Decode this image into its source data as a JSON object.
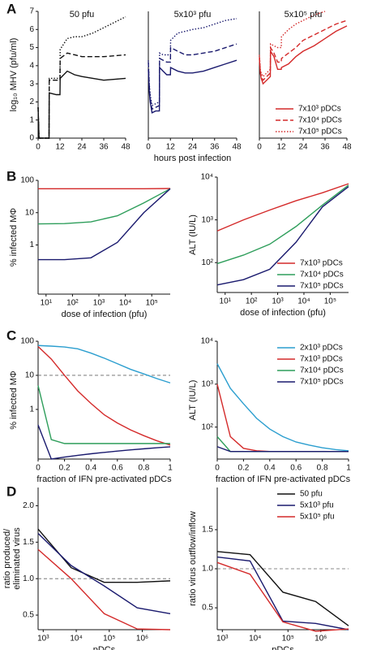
{
  "panel_labels": [
    "A",
    "B",
    "C",
    "D"
  ],
  "chart_data": [
    {
      "type": "line",
      "title": "50 pfu",
      "ylabel": [
        "log₁₀ MHV (pfu/ml)"
      ],
      "x": [
        0,
        0.5,
        1,
        2,
        4,
        6,
        6.1,
        8,
        10,
        12,
        12.1,
        16,
        20,
        24,
        30,
        36,
        42,
        48
      ],
      "xlim": [
        0,
        48
      ],
      "xticks": [
        0,
        12,
        24,
        36,
        48
      ],
      "ylim": [
        0,
        7
      ],
      "yticks": [
        0,
        1,
        2,
        3,
        4,
        5,
        6,
        7
      ],
      "series": [
        {
          "color": "#111111",
          "dash": "solid",
          "values": [
            1.7,
            0,
            0,
            0,
            0,
            0,
            2.5,
            2.45,
            2.4,
            2.4,
            3.3,
            3.7,
            3.5,
            3.4,
            3.3,
            3.2,
            3.25,
            3.3
          ]
        },
        {
          "color": "#111111",
          "dash": "dashed",
          "values": [
            1.7,
            0,
            0,
            0,
            0,
            0,
            3.2,
            3.2,
            3.2,
            3.2,
            4.4,
            4.7,
            4.6,
            4.5,
            4.5,
            4.5,
            4.55,
            4.6
          ]
        },
        {
          "color": "#111111",
          "dash": "dotted",
          "values": [
            1.7,
            0,
            0,
            0,
            0,
            0,
            3.3,
            3.3,
            3.3,
            3.3,
            4.9,
            5.5,
            5.6,
            5.6,
            5.8,
            6.1,
            6.4,
            6.7
          ]
        }
      ]
    },
    {
      "type": "line",
      "title": "5x10³ pfu",
      "xlabel": "hours post infection",
      "x": [
        0,
        0.5,
        1,
        2,
        4,
        6,
        6.1,
        8,
        10,
        12,
        12.1,
        16,
        20,
        24,
        30,
        36,
        42,
        48
      ],
      "xlim": [
        0,
        48
      ],
      "xticks": [
        0,
        12,
        24,
        36,
        48
      ],
      "ylim": [
        0,
        7
      ],
      "series": [
        {
          "color": "#1a1a6e",
          "dash": "solid",
          "values": [
            3.8,
            2.6,
            2.0,
            1.4,
            1.5,
            1.5,
            3.9,
            3.7,
            3.5,
            3.5,
            3.9,
            3.7,
            3.6,
            3.6,
            3.7,
            3.9,
            4.1,
            4.3
          ]
        },
        {
          "color": "#1a1a6e",
          "dash": "dashed",
          "values": [
            4.2,
            2.9,
            2.2,
            1.6,
            1.7,
            1.8,
            4.4,
            4.3,
            4.2,
            4.2,
            5.0,
            4.8,
            4.6,
            4.6,
            4.7,
            4.8,
            5.0,
            5.2
          ]
        },
        {
          "color": "#1a1a6e",
          "dash": "dotted",
          "values": [
            4.3,
            3.0,
            2.4,
            1.8,
            1.9,
            2.0,
            4.7,
            4.6,
            4.6,
            4.6,
            5.4,
            5.8,
            5.9,
            6.0,
            6.1,
            6.3,
            6.5,
            6.6
          ]
        }
      ]
    },
    {
      "type": "line",
      "title": "5x10⁵ pfu",
      "legend": "lower right",
      "x": [
        0,
        0.5,
        1,
        2,
        4,
        6,
        6.1,
        8,
        10,
        12,
        12.1,
        16,
        20,
        24,
        30,
        36,
        42,
        48
      ],
      "xlim": [
        0,
        48
      ],
      "xticks": [
        0,
        12,
        24,
        36,
        48
      ],
      "ylim": [
        0,
        7
      ],
      "series": [
        {
          "name": "7x10³ pDCs",
          "color": "#d42a2a",
          "dash": "solid",
          "values": [
            4.4,
            3.6,
            3.3,
            3.0,
            3.2,
            3.4,
            4.8,
            4.5,
            3.8,
            3.8,
            3.9,
            4.1,
            4.5,
            4.8,
            5.1,
            5.5,
            5.9,
            6.2
          ]
        },
        {
          "name": "7x10⁴ pDCs",
          "color": "#d42a2a",
          "dash": "dashed",
          "values": [
            4.5,
            3.7,
            3.4,
            3.2,
            3.4,
            3.6,
            5.0,
            4.7,
            4.2,
            4.2,
            4.4,
            4.7,
            5.0,
            5.4,
            5.7,
            6.0,
            6.3,
            6.5
          ]
        },
        {
          "name": "7x10⁵ pDCs",
          "color": "#d42a2a",
          "dash": "dotted",
          "values": [
            4.6,
            3.8,
            3.6,
            3.4,
            3.6,
            3.8,
            5.2,
            5.1,
            5.0,
            5.0,
            5.6,
            6.0,
            6.3,
            6.5,
            6.8,
            7.0,
            null,
            null
          ]
        }
      ]
    },
    {
      "type": "line",
      "ylabel": [
        "% infected MΦ"
      ],
      "xlabel": "dose of infection (pfu)",
      "xscale": "log",
      "yscale": "log",
      "x": [
        5,
        50,
        500,
        5000,
        50000,
        500000
      ],
      "xlim": [
        5,
        500000
      ],
      "xticks": [
        {
          "value": 10,
          "label": "10¹"
        },
        {
          "value": 100,
          "label": "10²"
        },
        {
          "value": 1000,
          "label": "10³"
        },
        {
          "value": 10000,
          "label": "10⁴"
        },
        {
          "value": 100000,
          "label": "10⁵"
        }
      ],
      "ylim": [
        0.03,
        100
      ],
      "yticks": [
        1,
        10,
        100
      ],
      "series": [
        {
          "color": "#d42a2a",
          "dash": "solid",
          "values": [
            55,
            55,
            55,
            55,
            55,
            56
          ]
        },
        {
          "color": "#2e9e5b",
          "dash": "solid",
          "values": [
            4.5,
            4.6,
            5.2,
            8,
            20,
            55
          ]
        },
        {
          "color": "#1a1a6e",
          "dash": "solid",
          "values": [
            0.35,
            0.35,
            0.4,
            1.2,
            10,
            55
          ]
        }
      ]
    },
    {
      "type": "line",
      "ylabel": [
        "ALT (IU/L)"
      ],
      "xlabel": "dose of infection (pfu)",
      "legend": "lower right",
      "xscale": "log",
      "yscale": "log",
      "x": [
        5,
        50,
        500,
        5000,
        50000,
        500000
      ],
      "xlim": [
        5,
        500000
      ],
      "xticks": [
        {
          "value": 10,
          "label": "10¹"
        },
        {
          "value": 100,
          "label": "10²"
        },
        {
          "value": 1000,
          "label": "10³"
        },
        {
          "value": 10000,
          "label": "10⁴"
        },
        {
          "value": 100000,
          "label": "10⁵"
        }
      ],
      "ylim": [
        20,
        10000
      ],
      "yticks": [
        {
          "value": 100,
          "label": "10²"
        },
        {
          "value": 1000,
          "label": "10³"
        },
        {
          "value": 10000,
          "label": "10⁴"
        }
      ],
      "series": [
        {
          "name": "7x10³ pDCs",
          "color": "#d42a2a",
          "dash": "solid",
          "values": [
            550,
            1000,
            1700,
            2800,
            4300,
            7000
          ]
        },
        {
          "name": "7x10⁴ pDCs",
          "color": "#2e9e5b",
          "dash": "solid",
          "values": [
            95,
            150,
            270,
            700,
            2200,
            6500
          ]
        },
        {
          "name": "7x10⁵ pDCs",
          "color": "#1a1a6e",
          "dash": "solid",
          "values": [
            30,
            40,
            70,
            300,
            2000,
            6000
          ]
        }
      ]
    },
    {
      "type": "line",
      "ylabel": [
        "% infected MΦ"
      ],
      "xlabel": "fraction of IFN pre-activated pDCs",
      "yscale": "log",
      "hline": 10,
      "x": [
        0,
        0.1,
        0.2,
        0.3,
        0.4,
        0.5,
        0.6,
        0.7,
        0.8,
        0.9,
        1
      ],
      "xlim": [
        0,
        1
      ],
      "xticks": [
        0,
        0.2,
        0.4,
        0.6,
        0.8,
        1
      ],
      "ylim": [
        0.035,
        100
      ],
      "yticks": [
        1,
        10,
        100
      ],
      "series": [
        {
          "color": "#2b9ecf",
          "dash": "solid",
          "values": [
            75,
            72,
            68,
            60,
            45,
            32,
            22,
            15,
            11,
            8,
            6
          ]
        },
        {
          "color": "#d42a2a",
          "dash": "solid",
          "values": [
            70,
            30,
            10,
            3.5,
            1.5,
            0.7,
            0.4,
            0.25,
            0.17,
            0.12,
            0.09
          ]
        },
        {
          "color": "#2e9e5b",
          "dash": "solid",
          "values": [
            5,
            0.13,
            0.1,
            0.1,
            0.1,
            0.1,
            0.1,
            0.1,
            0.1,
            0.1,
            0.1
          ]
        },
        {
          "color": "#1a1a6e",
          "dash": "solid",
          "values": [
            0.35,
            0.035,
            0.04,
            0.045,
            0.05,
            0.055,
            0.06,
            0.065,
            0.07,
            0.075,
            0.08
          ]
        }
      ]
    },
    {
      "type": "line",
      "ylabel": [
        "ALT (IU/L)"
      ],
      "xlabel": "fraction of IFN pre-activated pDCs",
      "legend": "upper right",
      "yscale": "log",
      "x": [
        0,
        0.1,
        0.2,
        0.3,
        0.4,
        0.5,
        0.6,
        0.7,
        0.8,
        0.9,
        1
      ],
      "xlim": [
        0,
        1
      ],
      "xticks": [
        0,
        0.2,
        0.4,
        0.6,
        0.8,
        1
      ],
      "ylim": [
        18,
        10000
      ],
      "yticks": [
        {
          "value": 100,
          "label": "10²"
        },
        {
          "value": 1000,
          "label": "10³"
        },
        {
          "value": 10000,
          "label": "10⁴"
        }
      ],
      "series": [
        {
          "name": "2x10³ pDCs",
          "color": "#2b9ecf",
          "dash": "solid",
          "values": [
            3000,
            800,
            350,
            160,
            90,
            60,
            45,
            38,
            33,
            30,
            28
          ]
        },
        {
          "name": "7x10³ pDCs",
          "color": "#d42a2a",
          "dash": "solid",
          "values": [
            1000,
            60,
            32,
            28,
            27,
            27,
            27,
            27,
            27,
            27,
            27
          ]
        },
        {
          "name": "7x10⁴ pDCs",
          "color": "#2e9e5b",
          "dash": "solid",
          "values": [
            60,
            27,
            27,
            27,
            27,
            27,
            27,
            27,
            27,
            27,
            27
          ]
        },
        {
          "name": "7x10⁵ pDCs",
          "color": "#1a1a6e",
          "dash": "solid",
          "values": [
            35,
            27,
            27,
            27,
            27,
            27,
            27,
            27,
            27,
            27,
            27
          ]
        }
      ]
    },
    {
      "type": "line",
      "ylabel": [
        "ratio produced/",
        "eliminated virus"
      ],
      "xlabel": "pDCs",
      "xscale": "log",
      "hline": 1,
      "x": [
        700,
        7000,
        70000,
        700000,
        7000000
      ],
      "xlim": [
        700,
        7000000
      ],
      "xticks": [
        {
          "value": 1000,
          "label": "10³"
        },
        {
          "value": 10000,
          "label": "10⁴"
        },
        {
          "value": 100000,
          "label": "10⁵"
        },
        {
          "value": 1000000,
          "label": "10⁶"
        }
      ],
      "ylim": [
        0.3,
        2.25
      ],
      "yticks": [
        0.5,
        {
          "value": 1,
          "label": "1.0"
        },
        1.5,
        {
          "value": 2,
          "label": "2.0"
        }
      ],
      "series": [
        {
          "color": "#111111",
          "dash": "solid",
          "values": [
            1.68,
            1.15,
            0.95,
            0.95,
            0.97
          ]
        },
        {
          "color": "#1a1a6e",
          "dash": "solid",
          "values": [
            1.62,
            1.18,
            0.9,
            0.6,
            0.52
          ]
        },
        {
          "color": "#d42a2a",
          "dash": "solid",
          "values": [
            1.4,
            1.0,
            0.52,
            0.31,
            0.3
          ]
        }
      ]
    },
    {
      "type": "line",
      "ylabel": [
        "ratio virus outflow/inflow"
      ],
      "xlabel": "pDCs",
      "legend": "upper right",
      "xscale": "log",
      "hline": 1,
      "x": [
        700,
        7000,
        70000,
        700000,
        7000000
      ],
      "xlim": [
        700,
        7000000
      ],
      "xticks": [
        {
          "value": 1000,
          "label": "10³"
        },
        {
          "value": 10000,
          "label": "10⁴"
        },
        {
          "value": 100000,
          "label": "10⁵"
        },
        {
          "value": 1000000,
          "label": "10⁶"
        }
      ],
      "ylim": [
        0.22,
        2.04
      ],
      "yticks": [
        0.5,
        {
          "value": 1,
          "label": "1.0"
        },
        1.5
      ],
      "series": [
        {
          "name": "50 pfu",
          "color": "#111111",
          "dash": "solid",
          "values": [
            1.22,
            1.18,
            0.7,
            0.58,
            0.27
          ]
        },
        {
          "name": "5x10³ pfu",
          "color": "#1a1a6e",
          "dash": "solid",
          "values": [
            1.15,
            1.1,
            0.33,
            0.3,
            0.22
          ]
        },
        {
          "name": "5x10⁵ pfu",
          "color": "#d42a2a",
          "dash": "solid",
          "values": [
            1.08,
            0.93,
            0.32,
            0.2,
            0.23
          ]
        }
      ]
    }
  ]
}
